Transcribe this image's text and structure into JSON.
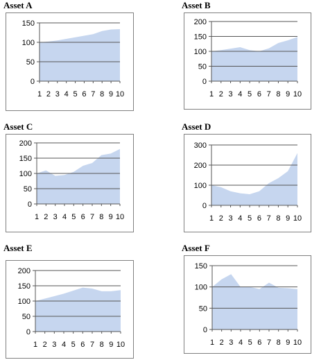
{
  "chart_data": [
    {
      "type": "area",
      "title": "Asset A",
      "x": [
        1,
        2,
        3,
        4,
        5,
        6,
        7,
        8,
        9,
        10
      ],
      "values": [
        100,
        102,
        105,
        109,
        113,
        117,
        121,
        129,
        133,
        134
      ],
      "ylim": [
        0,
        150
      ],
      "yticks": [
        0,
        50,
        100,
        150
      ],
      "grid": true,
      "color": "#c6d6ef"
    },
    {
      "type": "area",
      "title": "Asset B",
      "x": [
        1,
        2,
        3,
        4,
        5,
        6,
        7,
        8,
        9,
        10
      ],
      "values": [
        100,
        104,
        109,
        114,
        104,
        100,
        110,
        128,
        137,
        148
      ],
      "ylim": [
        0,
        200
      ],
      "yticks": [
        0,
        50,
        100,
        150,
        200
      ],
      "grid": true,
      "color": "#c6d6ef"
    },
    {
      "type": "area",
      "title": "Asset C",
      "x": [
        1,
        2,
        3,
        4,
        5,
        6,
        7,
        8,
        9,
        10
      ],
      "values": [
        100,
        110,
        92,
        95,
        105,
        125,
        134,
        160,
        165,
        180
      ],
      "ylim": [
        0,
        200
      ],
      "yticks": [
        0,
        50,
        100,
        150,
        200
      ],
      "grid": true,
      "color": "#c6d6ef"
    },
    {
      "type": "area",
      "title": "Asset D",
      "x": [
        1,
        2,
        3,
        4,
        5,
        6,
        7,
        8,
        9,
        10
      ],
      "values": [
        100,
        90,
        70,
        60,
        55,
        70,
        110,
        135,
        170,
        260
      ],
      "ylim": [
        0,
        300
      ],
      "yticks": [
        0,
        100,
        200,
        300
      ],
      "grid": true,
      "color": "#c6d6ef"
    },
    {
      "type": "area",
      "title": "Asset E",
      "x": [
        1,
        2,
        3,
        4,
        5,
        6,
        7,
        8,
        9,
        10
      ],
      "values": [
        100,
        108,
        116,
        124,
        134,
        144,
        141,
        132,
        132,
        136
      ],
      "ylim": [
        0,
        200
      ],
      "yticks": [
        0,
        50,
        100,
        150,
        200
      ],
      "grid": true,
      "color": "#c6d6ef"
    },
    {
      "type": "area",
      "title": "Asset F",
      "x": [
        1,
        2,
        3,
        4,
        5,
        6,
        7,
        8,
        9,
        10
      ],
      "values": [
        100,
        118,
        130,
        100,
        100,
        95,
        110,
        98,
        97,
        95
      ],
      "ylim": [
        0,
        150
      ],
      "yticks": [
        0,
        50,
        100,
        150
      ],
      "grid": true,
      "color": "#c6d6ef"
    }
  ]
}
